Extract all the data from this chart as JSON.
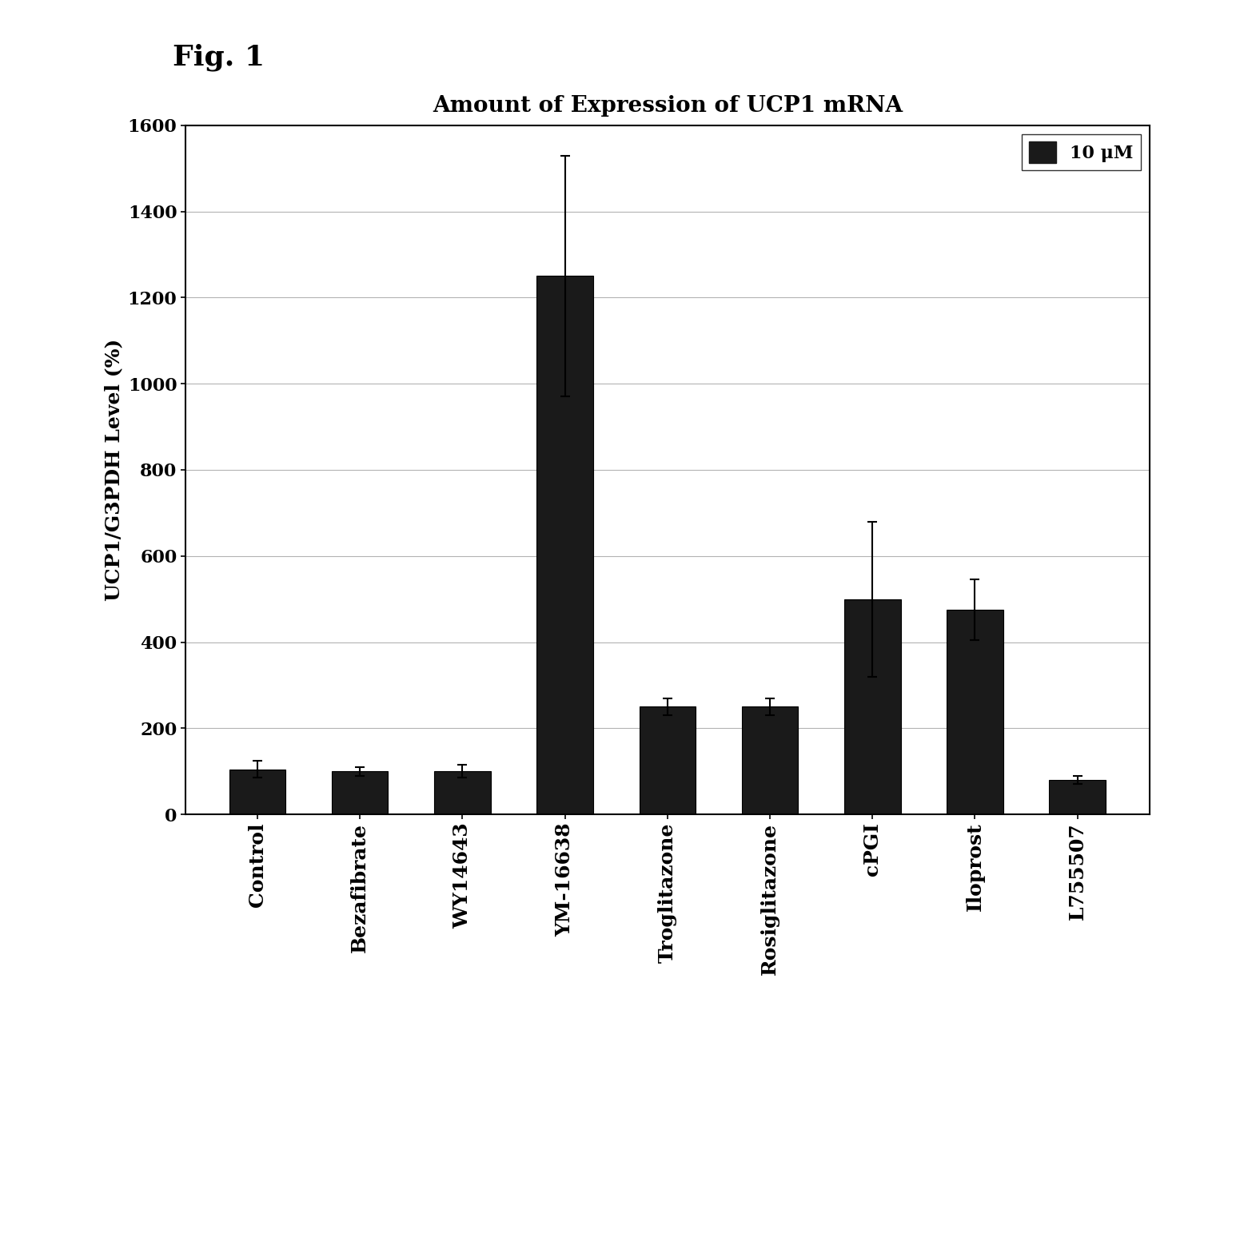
{
  "title": "Amount of Expression of UCP1 mRNA",
  "ylabel": "UCP1/G3PDH Level (%)",
  "categories": [
    "Control",
    "Bezafibrate",
    "WY14643",
    "YM-16638",
    "Troglitazone",
    "Rosiglitazone",
    "cPGI",
    "Iloprost",
    "L755507"
  ],
  "values": [
    105,
    100,
    100,
    1250,
    250,
    250,
    500,
    475,
    80
  ],
  "errors": [
    20,
    10,
    15,
    280,
    20,
    20,
    180,
    70,
    10
  ],
  "bar_color": "#1a1a1a",
  "bar_width": 0.55,
  "ylim": [
    0,
    1600
  ],
  "yticks": [
    0,
    200,
    400,
    600,
    800,
    1000,
    1200,
    1400,
    1600
  ],
  "legend_label": "10 μM",
  "fig_label": "Fig. 1",
  "title_fontsize": 20,
  "fig_label_fontsize": 26,
  "ylabel_fontsize": 18,
  "tick_fontsize": 16,
  "xtick_fontsize": 18
}
